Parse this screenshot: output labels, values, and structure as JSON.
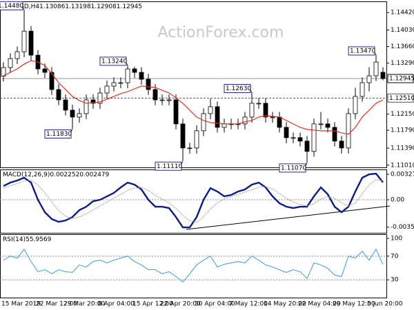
{
  "chart_data": [
    {
      "type": "candlestick",
      "title": "EURUSD,H4",
      "watermark": "ActionForex.com",
      "categories": [
        "15 Mar 2019",
        null,
        null,
        null,
        null,
        "22 Mar 12:00",
        null,
        null,
        null,
        "29 Mar 20:00",
        null,
        null,
        null,
        null,
        "8 Apr 04:00",
        null,
        null,
        null,
        null,
        "15 Apr 12:00",
        null,
        null,
        null,
        "22 Apr 20:00",
        null,
        null,
        null,
        null,
        "30 Apr 04:00",
        null,
        null,
        null,
        null,
        "7 May 12:00",
        null,
        null,
        null,
        null,
        "14 May 20:00",
        null,
        null,
        null,
        null,
        "22 May 04:00",
        null,
        null,
        null,
        null,
        "29 May 12:00",
        null,
        null,
        null,
        null,
        "5 Jun 20:00",
        null,
        null
      ],
      "open": [
        1.13,
        1.13191,
        1.13391,
        1.13545,
        1.14005,
        1.13468,
        1.13161,
        1.13084,
        1.127,
        1.12469,
        1.12239,
        1.12085,
        1.12162,
        1.12469,
        1.12393,
        1.12623,
        1.12777,
        1.12853,
        1.12853,
        1.13161,
        1.13084,
        1.1293,
        1.127,
        1.12469,
        1.12469,
        1.12469,
        1.11932,
        1.11394,
        1.11394,
        1.11778,
        1.12162,
        1.12316,
        1.11855,
        1.11932,
        1.11932,
        1.11932,
        1.12085,
        1.12393,
        1.12393,
        1.12085,
        1.12085,
        1.11855,
        1.11625,
        1.11625,
        1.11548,
        1.11317,
        1.11932,
        1.11932,
        1.11855,
        1.11548,
        1.11394,
        1.12162,
        1.12546,
        1.12853,
        1.13007,
        1.13086
      ],
      "high": [
        1.1331,
        1.1351,
        1.1366,
        1.1448,
        1.1412,
        1.1358,
        1.1328,
        1.132,
        1.1282,
        1.1259,
        1.1236,
        1.1228,
        1.1259,
        1.1259,
        1.1274,
        1.129,
        1.1297,
        1.1297,
        1.1324,
        1.1321,
        1.132,
        1.1305,
        1.1282,
        1.1259,
        1.1259,
        1.1259,
        1.1205,
        1.1151,
        1.119,
        1.1228,
        1.125,
        1.1243,
        1.1205,
        1.1205,
        1.1205,
        1.122,
        1.1263,
        1.1251,
        1.1251,
        1.122,
        1.122,
        1.1197,
        1.1174,
        1.1174,
        1.1166,
        1.1205,
        1.122,
        1.1205,
        1.1197,
        1.1166,
        1.1228,
        1.1274,
        1.1297,
        1.132,
        1.1347,
        1.13198
      ],
      "low": [
        1.1288,
        1.1307,
        1.1327,
        1.1342,
        1.1335,
        1.1304,
        1.1296,
        1.1258,
        1.1235,
        1.1212,
        1.1183,
        1.1196,
        1.1204,
        1.1227,
        1.1227,
        1.125,
        1.1266,
        1.1273,
        1.1273,
        1.1296,
        1.1281,
        1.1258,
        1.1235,
        1.1235,
        1.1235,
        1.1181,
        1.1111,
        1.1127,
        1.1127,
        1.1166,
        1.1204,
        1.1174,
        1.1174,
        1.1181,
        1.1181,
        1.1181,
        1.1196,
        1.1227,
        1.1196,
        1.1196,
        1.1174,
        1.115,
        1.115,
        1.1143,
        1.1107,
        1.112,
        1.1181,
        1.1174,
        1.1143,
        1.1127,
        1.1127,
        1.1204,
        1.1243,
        1.1266,
        1.1289,
        1.12908
      ],
      "close": [
        1.13191,
        1.13391,
        1.13545,
        1.14005,
        1.13468,
        1.13161,
        1.13084,
        1.127,
        1.12469,
        1.12239,
        1.12085,
        1.12162,
        1.12469,
        1.12393,
        1.12623,
        1.12777,
        1.12853,
        1.12853,
        1.13161,
        1.13084,
        1.1293,
        1.127,
        1.12469,
        1.12469,
        1.12469,
        1.11932,
        1.11394,
        1.11394,
        1.11778,
        1.12162,
        1.12316,
        1.11855,
        1.11932,
        1.11932,
        1.11932,
        1.12085,
        1.12393,
        1.12393,
        1.12085,
        1.12085,
        1.11855,
        1.11625,
        1.11625,
        1.11548,
        1.11317,
        1.11932,
        1.11932,
        1.11855,
        1.11548,
        1.11394,
        1.12162,
        1.12546,
        1.12853,
        1.13007,
        1.13314,
        1.12945
      ],
      "up_color": "#ffffff",
      "down_color": "#000000",
      "wick_color": "#000000",
      "ma": {
        "color": "#e03020",
        "values": [
          1.13007,
          1.13084,
          1.13161,
          1.13268,
          1.13345,
          1.13314,
          1.13237,
          1.13053,
          1.12853,
          1.127,
          1.12546,
          1.12454,
          1.12393,
          1.12408,
          1.12423,
          1.12485,
          1.12546,
          1.12608,
          1.12654,
          1.12715,
          1.12777,
          1.12761,
          1.12746,
          1.12684,
          1.12623,
          1.12516,
          1.12393,
          1.12239,
          1.12085,
          1.12009,
          1.11962,
          1.11947,
          1.11932,
          1.11932,
          1.11932,
          1.11978,
          1.12009,
          1.12085,
          1.12116,
          1.12101,
          1.12085,
          1.12009,
          1.11932,
          1.11855,
          1.11809,
          1.11794,
          1.11778,
          1.11778,
          1.11778,
          1.11732,
          1.11701,
          1.11855,
          1.12085,
          1.12239,
          1.12393,
          1.12469
        ]
      },
      "ylim": [
        1.1096,
        1.1467
      ],
      "yticks": [
        {
          "value": 1.1442,
          "label": "1.14420"
        },
        {
          "value": 1.1403,
          "label": "1.14030"
        },
        {
          "value": 1.1366,
          "label": "1.13660"
        },
        {
          "value": 1.1329,
          "label": "1.13290"
        },
        {
          "value": 1.1215,
          "label": "1.12150"
        },
        {
          "value": 1.1179,
          "label": "1.11790"
        },
        {
          "value": 1.1139,
          "label": "1.11390"
        },
        {
          "value": 1.1101,
          "label": "1.11010"
        }
      ],
      "levels": [
        {
          "value": 1.1251,
          "label": "1.12510"
        }
      ],
      "annotations": [
        {
          "value": 1.1448,
          "label": "1.14480"
        },
        {
          "value": 1.1324,
          "label": "1.13240"
        },
        {
          "value": 1.1183,
          "label": "1.11830"
        },
        {
          "value": 1.1111,
          "label": "1.11110"
        },
        {
          "value": 1.1263,
          "label": "1.12630"
        },
        {
          "value": 1.1107,
          "label": "1.11070"
        },
        {
          "value": 1.1347,
          "label": "1.13470"
        }
      ]
    },
    {
      "type": "line",
      "title": "MACD(12,26,9)",
      "series": [
        {
          "color": "#0a1a8c",
          "values": [
            0.001772,
            0.002215,
            0.002481,
            0.002835,
            0.002215,
            0,
            -0.001595,
            -0.002481,
            -0.002835,
            -0.002658,
            -0.002215,
            -0.001329,
            -0.000886,
            -0.000177,
            0,
            0.000443,
            0.000886,
            0.001595,
            0.002215,
            0.001949,
            0.001329,
            0,
            -0.000886,
            -0.000886,
            -0.001063,
            -0.002215,
            -0.003544,
            -0.003544,
            -0.002215,
            0,
            0.001506,
            0.001063,
            0.000443,
            0.00062,
            0.001063,
            0.001329,
            0.001949,
            0.002215,
            0.001595,
            0.000443,
            -0.000443,
            -0.000886,
            -0.001063,
            -0.000886,
            -0.000886,
            0.000443,
            0.001595,
            0.000709,
            -0.000886,
            -0.001595,
            -0.000886,
            0.001063,
            0.002835,
            0.003278,
            0.003367,
            0.002252
          ]
        },
        {
          "color": "#a0a0a0",
          "dashed": true,
          "values": [
            0.0015,
            0.0018,
            0.0021,
            0.0024,
            0.0025,
            0.0019,
            0.0009,
            -0.0003,
            -0.0014,
            -0.0021,
            -0.0024,
            -0.0022,
            -0.0018,
            -0.0013,
            -0.0008,
            -0.0003,
            0.0002,
            0.0007,
            0.0012,
            0.0015,
            0.0016,
            0.0012,
            0.0006,
            0.0001,
            -0.0004,
            -0.0011,
            -0.002,
            -0.0027,
            -0.0029,
            -0.0022,
            -0.0012,
            -0.0004,
            0.0001,
            0.0004,
            0.0007,
            0.001,
            0.0013,
            0.0016,
            0.0017,
            0.0014,
            0.0008,
            0.0002,
            -0.0003,
            -0.0006,
            -0.0008,
            -0.0005,
            0.0001,
            0.0004,
            0.0002,
            -0.0004,
            -0.0008,
            -0.0004,
            0.0008,
            0.0019,
            0.0026,
            0.002479
          ]
        }
      ],
      "ylim": [
        -0.00425,
        0.0039
      ],
      "yticks": [
        0.003278,
        {
          "value": 0,
          "label": "0.00"
        },
        -0.003519
      ],
      "grid_levels": [
        0
      ]
    },
    {
      "type": "line",
      "title": "RSI(14)",
      "series": [
        {
          "color": "#3d9ae0",
          "values": [
            63.2,
            70.1,
            66.7,
            81.6,
            60.9,
            43.7,
            47.1,
            40.2,
            47.1,
            43.7,
            42.5,
            55.2,
            51.7,
            60.9,
            63.2,
            58.6,
            63.2,
            66.7,
            70.1,
            60.9,
            55.2,
            47.1,
            47.1,
            40.2,
            43.7,
            35.6,
            26.4,
            40.2,
            55.2,
            63.2,
            70.1,
            51.7,
            56.3,
            58.6,
            60.9,
            58.6,
            70.1,
            63.2,
            55.2,
            51.7,
            47.1,
            42.5,
            47.1,
            43.7,
            32.2,
            58.6,
            55.2,
            49.4,
            37.9,
            35.6,
            70.1,
            66.7,
            78.2,
            63.2,
            81.6,
            55.9569
          ]
        }
      ],
      "ylim": [
        0,
        107
      ],
      "yticks": [
        100,
        70,
        30
      ],
      "grid_levels": [
        70,
        30
      ]
    }
  ]
}
